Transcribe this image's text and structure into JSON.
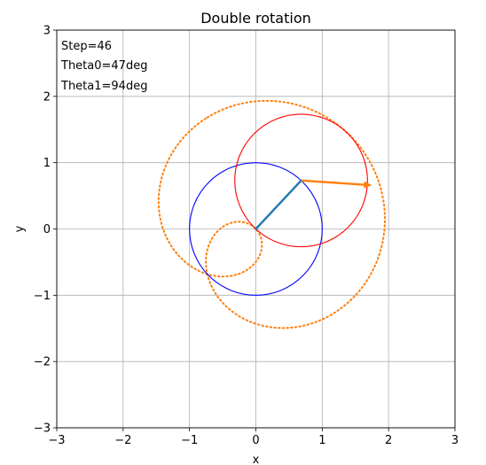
{
  "chart_data": {
    "type": "line",
    "title": "Double rotation",
    "xlabel": "x",
    "ylabel": "y",
    "xlim": [
      -3,
      3
    ],
    "ylim": [
      -3,
      3
    ],
    "grid": true,
    "x_ticks": [
      -3,
      -2,
      -1,
      0,
      1,
      2,
      3
    ],
    "y_ticks": [
      -3,
      -2,
      -1,
      0,
      1,
      2,
      3
    ],
    "x_tick_labels": [
      "−3",
      "−2",
      "−1",
      "0",
      "1",
      "2",
      "3"
    ],
    "y_tick_labels": [
      "−3",
      "−2",
      "−1",
      "0",
      "1",
      "2",
      "3"
    ],
    "annotations": [
      "Step=46",
      "Theta0=47deg",
      "Theta1=94deg"
    ],
    "theta0_deg": 47,
    "theta1_deg": 94,
    "circles": [
      {
        "center": [
          0,
          0
        ],
        "radius": 1,
        "color": "#0000ff"
      },
      {
        "center": [
          0.682,
          0.731
        ],
        "radius": 1,
        "color": "#ff0000"
      }
    ],
    "arm1": {
      "from": [
        0,
        0
      ],
      "to": [
        0.682,
        0.731
      ],
      "color": "#1f77b4"
    },
    "arm2": {
      "from": [
        0.682,
        0.731
      ],
      "to": [
        1.75,
        0.66
      ],
      "color": "#ff7f0e"
    },
    "trace": {
      "color": "#ff7f0e",
      "style": "dotted"
    }
  }
}
